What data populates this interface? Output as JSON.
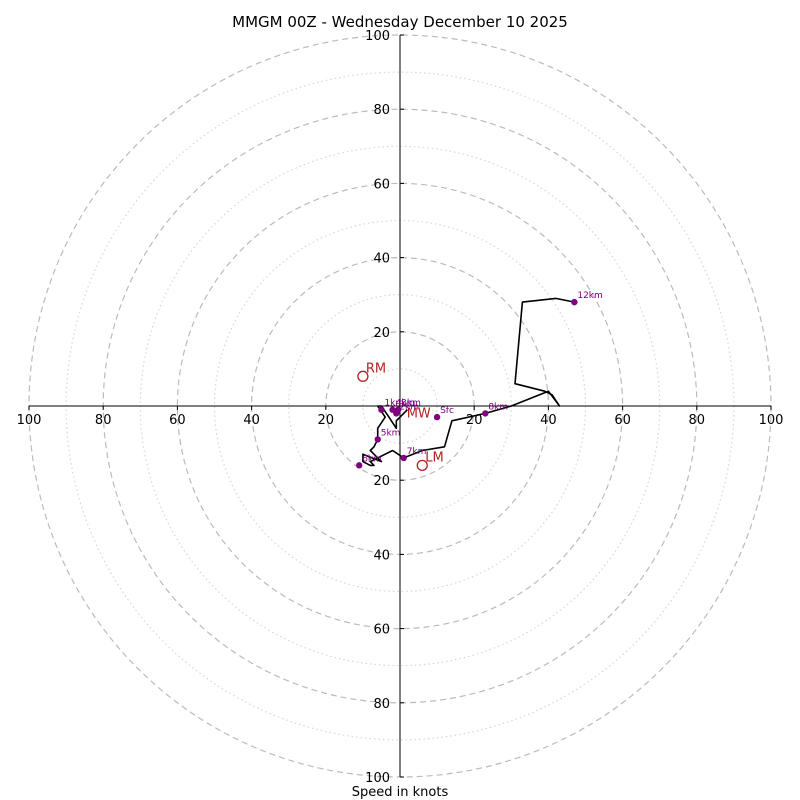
{
  "chart_data": {
    "type": "hodograph",
    "title": "MMGM 00Z - Wednesday December 10 2025",
    "xlabel": "Speed in knots",
    "axis_range": [
      -100,
      100
    ],
    "ring_step_dashed": 20,
    "ring_step_dotted": 10,
    "tick_labels_x": [
      "100",
      "80",
      "60",
      "40",
      "20",
      "20",
      "40",
      "60",
      "80",
      "100"
    ],
    "tick_labels_y": [
      "100",
      "80",
      "60",
      "40",
      "20",
      "20",
      "40",
      "60",
      "80",
      "100"
    ],
    "colors": {
      "trace": "#000000",
      "height_points": "#800080",
      "storm_motion": "#b22222",
      "grid": "#bbbbbb"
    },
    "trace": [
      [
        2,
        -1
      ],
      [
        1,
        -2
      ],
      [
        -1,
        -4
      ],
      [
        -1,
        -6
      ],
      [
        -3,
        -3
      ],
      [
        -5,
        0
      ],
      [
        -6,
        0
      ],
      [
        -4,
        -3
      ],
      [
        -6,
        -6
      ],
      [
        -6,
        -9
      ],
      [
        -7,
        -11
      ],
      [
        -8,
        -12
      ],
      [
        -7,
        -13
      ],
      [
        -5,
        -15
      ],
      [
        -10,
        -13
      ],
      [
        -10,
        -15
      ],
      [
        -8,
        -16
      ],
      [
        -7,
        -16
      ],
      [
        -8,
        -15
      ],
      [
        -2,
        -12
      ],
      [
        1,
        -14
      ],
      [
        6,
        -12
      ],
      [
        12,
        -11
      ],
      [
        14,
        -4
      ],
      [
        23,
        -2
      ],
      [
        30,
        0
      ],
      [
        40,
        4
      ],
      [
        43,
        0
      ],
      [
        41,
        3
      ],
      [
        39,
        4
      ],
      [
        31,
        6
      ],
      [
        33,
        28
      ],
      [
        42,
        29
      ],
      [
        47,
        28
      ]
    ],
    "height_points": [
      {
        "label": "Sfc",
        "x": 10,
        "y": -3
      },
      {
        "label": "1km",
        "x": -5,
        "y": -1
      },
      {
        "label": "2km",
        "x": -1,
        "y": -2
      },
      {
        "label": "3km",
        "x": -0.5,
        "y": -1
      },
      {
        "label": "4km",
        "x": -2,
        "y": -1
      },
      {
        "label": "5km",
        "x": -6,
        "y": -9
      },
      {
        "label": "6km",
        "x": -11,
        "y": -16
      },
      {
        "label": "7km",
        "x": 1,
        "y": -14
      },
      {
        "label": "8km",
        "x": 23,
        "y": -2
      },
      {
        "label": "12km",
        "x": 47,
        "y": 28
      }
    ],
    "storm_motion": [
      {
        "label": "RM",
        "x": -10,
        "y": 8
      },
      {
        "label": "LM",
        "x": 6,
        "y": -16
      }
    ],
    "mean_wind": {
      "label": "MW",
      "x": 1,
      "y": -2
    }
  }
}
